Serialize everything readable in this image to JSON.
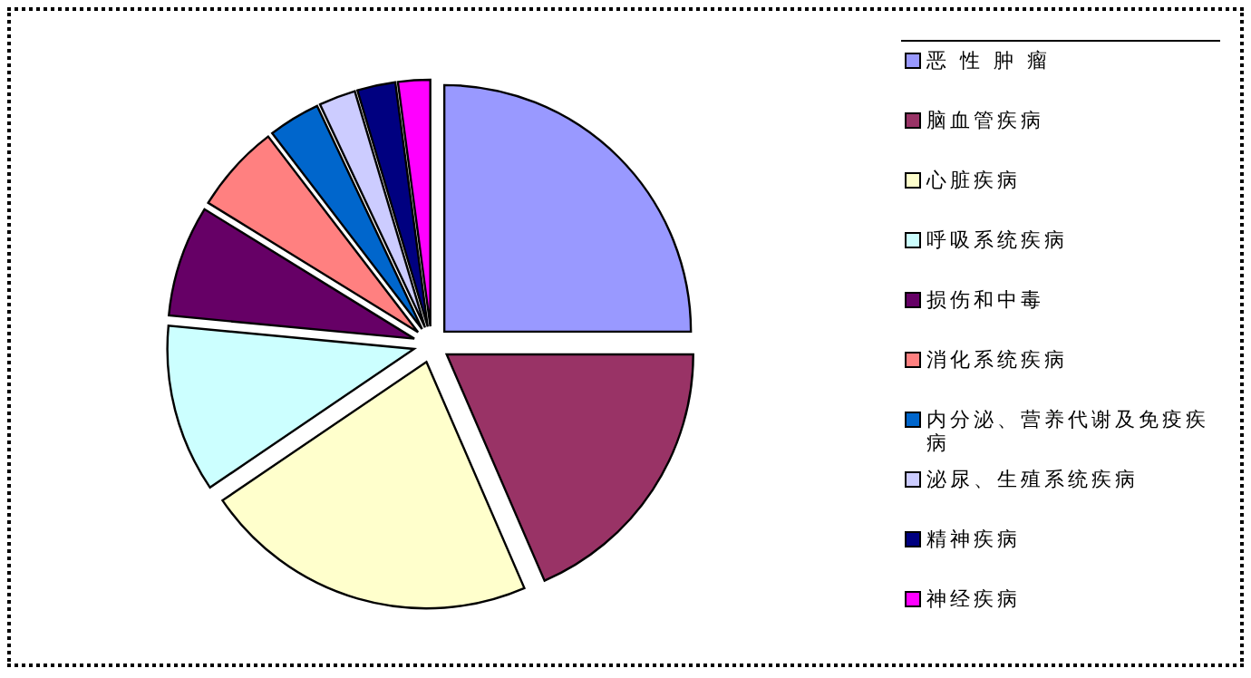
{
  "chart_data": {
    "type": "pie",
    "legend": "right",
    "categories": [
      "恶 性 肿 瘤",
      "脑血管疾病",
      "心脏疾病",
      "呼吸系统疾病",
      "损伤和中毒",
      "消化系统疾病",
      "内分泌、营养代谢及免疫疾病",
      "泌尿、生殖系统疾病",
      "精神疾病",
      "神经疾病"
    ],
    "values": [
      25,
      18.5,
      22,
      11,
      7.3,
      5.8,
      3.4,
      2.4,
      2.5,
      2.1
    ],
    "colors": [
      "#9999ff",
      "#993366",
      "#ffffcc",
      "#ccffff",
      "#660066",
      "#ff8080",
      "#0066cc",
      "#ccccff",
      "#000080",
      "#ff00ff"
    ]
  }
}
